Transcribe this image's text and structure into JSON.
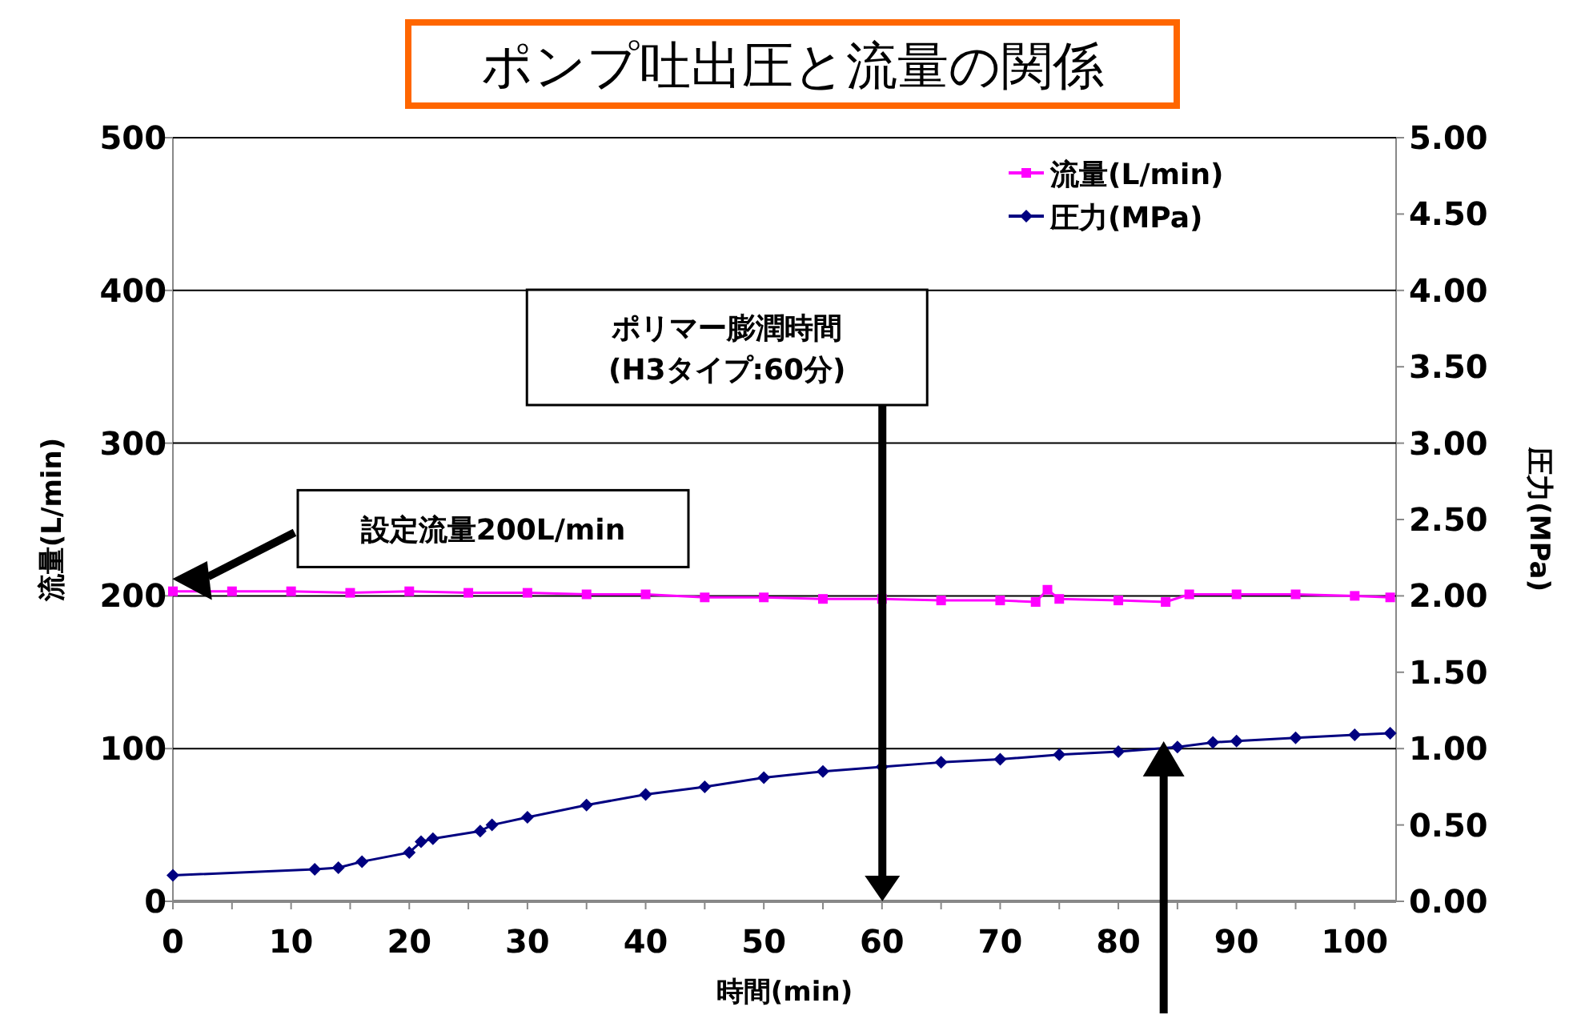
{
  "chart_data": {
    "type": "line",
    "title": "ポンプ吐出圧と流量の関係",
    "xlabel": "時間(min)",
    "ylabel": "流量(L/min)",
    "y2label": "圧力(MPa)",
    "xlim": [
      0,
      103.5
    ],
    "xticks": [
      0,
      {
        "value": 5,
        "label": null
      },
      10,
      {
        "value": 15,
        "label": null
      },
      20,
      {
        "value": 25,
        "label": null
      },
      30,
      {
        "value": 35,
        "label": null
      },
      40,
      {
        "value": 45,
        "label": null
      },
      50,
      {
        "value": 55,
        "label": null
      },
      60,
      {
        "value": 65,
        "label": null
      },
      70,
      {
        "value": 75,
        "label": null
      },
      80,
      {
        "value": 85,
        "label": null
      },
      90,
      {
        "value": 95,
        "label": null
      },
      100
    ],
    "ylim": [
      0,
      500
    ],
    "yticks": [
      0,
      100,
      200,
      300,
      400,
      500
    ],
    "y2lim": [
      0,
      5
    ],
    "y2ticks": [
      {
        "value": 0,
        "label": "0.00"
      },
      {
        "value": 0.5,
        "label": "0.50"
      },
      {
        "value": 1,
        "label": "1.00"
      },
      {
        "value": 1.5,
        "label": "1.50"
      },
      {
        "value": 2,
        "label": "2.00"
      },
      {
        "value": 2.5,
        "label": "2.50"
      },
      {
        "value": 3,
        "label": "3.00"
      },
      {
        "value": 3.5,
        "label": "3.50"
      },
      {
        "value": 4,
        "label": "4.00"
      },
      {
        "value": 4.5,
        "label": "4.50"
      },
      {
        "value": 5,
        "label": "5.00"
      }
    ],
    "grid": "y",
    "legend": "top right",
    "series": [
      {
        "name": "流量(L/min)",
        "color": "#ff00ff",
        "marker": "square",
        "x": [
          0,
          5,
          10,
          15,
          20,
          25,
          30,
          35,
          40,
          45,
          50,
          55,
          60,
          65,
          70,
          73,
          74,
          75,
          80,
          84,
          86,
          90,
          95,
          100,
          103
        ],
        "values": [
          203,
          203,
          203,
          202,
          203,
          202,
          202,
          201,
          201,
          199,
          199,
          198,
          198,
          197,
          197,
          196,
          204,
          198,
          197,
          196,
          201,
          201,
          201,
          200,
          199
        ]
      },
      {
        "name": "圧力(MPa)",
        "color": "#000080",
        "marker": "diamond",
        "axis": "y2",
        "x": [
          0,
          12,
          14,
          16,
          20,
          21,
          22,
          26,
          27,
          30,
          35,
          40,
          45,
          50,
          55,
          60,
          65,
          70,
          75,
          80,
          85,
          88,
          90,
          95,
          100,
          103
        ],
        "values": [
          0.17,
          0.21,
          0.22,
          0.26,
          0.32,
          0.39,
          0.41,
          0.46,
          0.5,
          0.55,
          0.63,
          0.7,
          0.75,
          0.81,
          0.85,
          0.88,
          0.91,
          0.93,
          0.96,
          0.98,
          1.01,
          1.04,
          1.05,
          1.07,
          1.09,
          1.1
        ]
      }
    ],
    "annotations": [
      "設定流量200L/min",
      "ポリマー膨潤時間\n(H3タイプ:60分)"
    ]
  }
}
